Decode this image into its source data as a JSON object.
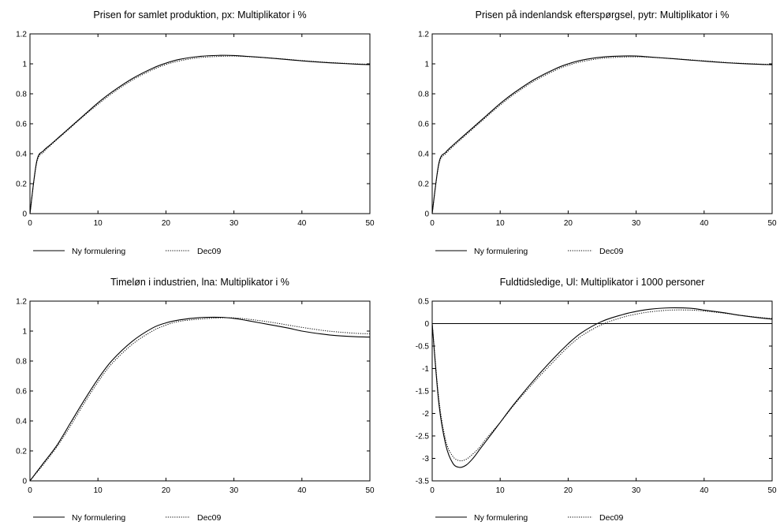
{
  "chart_data": [
    {
      "type": "line",
      "title": "Prisen for samlet produktion, px: Multiplikator i %",
      "xlim": [
        0,
        50
      ],
      "ylim": [
        0,
        1.2
      ],
      "xticks": [
        "0",
        "10",
        "20",
        "30",
        "40",
        "50"
      ],
      "yticks": [
        "0",
        "0.2",
        "0.4",
        "0.6",
        "0.8",
        "1",
        "1.2"
      ],
      "x": [
        0,
        1,
        2,
        3,
        4,
        5,
        6,
        8,
        10,
        12,
        15,
        18,
        20,
        22,
        25,
        28,
        30,
        32,
        35,
        38,
        40,
        43,
        45,
        48,
        50
      ],
      "series": [
        {
          "name": "Ny formulering",
          "style": "solid",
          "values": [
            0,
            0.35,
            0.42,
            0.46,
            0.5,
            0.54,
            0.58,
            0.66,
            0.74,
            0.81,
            0.9,
            0.97,
            1.005,
            1.03,
            1.05,
            1.057,
            1.056,
            1.05,
            1.04,
            1.028,
            1.02,
            1.01,
            1.005,
            0.998,
            0.995
          ]
        },
        {
          "name": "Dec09",
          "style": "dotted",
          "values": [
            0,
            0.34,
            0.41,
            0.455,
            0.495,
            0.535,
            0.575,
            0.655,
            0.73,
            0.8,
            0.89,
            0.96,
            0.995,
            1.02,
            1.042,
            1.05,
            1.052,
            1.048,
            1.04,
            1.03,
            1.022,
            1.012,
            1.007,
            1.0,
            0.997
          ]
        }
      ],
      "zero_line": false,
      "legend": [
        "Ny formulering",
        "Dec09"
      ],
      "legend_position": "bottom-left"
    },
    {
      "type": "line",
      "title": "Prisen på indenlandsk efterspørgsel, pytr: Multiplikator i %",
      "xlim": [
        0,
        50
      ],
      "ylim": [
        0,
        1.2
      ],
      "xticks": [
        "0",
        "10",
        "20",
        "30",
        "40",
        "50"
      ],
      "yticks": [
        "0",
        "0.2",
        "0.4",
        "0.6",
        "0.8",
        "1",
        "1.2"
      ],
      "x": [
        0,
        1,
        2,
        3,
        4,
        5,
        6,
        8,
        10,
        12,
        15,
        18,
        20,
        22,
        25,
        28,
        30,
        32,
        35,
        38,
        40,
        43,
        45,
        48,
        50
      ],
      "series": [
        {
          "name": "Ny formulering",
          "style": "solid",
          "values": [
            0,
            0.34,
            0.41,
            0.455,
            0.495,
            0.535,
            0.575,
            0.655,
            0.735,
            0.805,
            0.895,
            0.965,
            1.0,
            1.025,
            1.045,
            1.052,
            1.052,
            1.046,
            1.036,
            1.025,
            1.018,
            1.008,
            1.003,
            0.997,
            0.994
          ]
        },
        {
          "name": "Dec09",
          "style": "dotted",
          "values": [
            0,
            0.33,
            0.4,
            0.445,
            0.487,
            0.527,
            0.567,
            0.647,
            0.725,
            0.795,
            0.885,
            0.955,
            0.99,
            1.015,
            1.037,
            1.045,
            1.047,
            1.044,
            1.036,
            1.027,
            1.02,
            1.01,
            1.005,
            0.999,
            0.996
          ]
        }
      ],
      "zero_line": false,
      "legend": [
        "Ny formulering",
        "Dec09"
      ],
      "legend_position": "bottom-left"
    },
    {
      "type": "line",
      "title": "Timeløn i industrien, lna: Multiplikator i %",
      "xlim": [
        0,
        50
      ],
      "ylim": [
        0,
        1.2
      ],
      "xticks": [
        "0",
        "10",
        "20",
        "30",
        "40",
        "50"
      ],
      "yticks": [
        "0",
        "0.2",
        "0.4",
        "0.6",
        "0.8",
        "1",
        "1.2"
      ],
      "x": [
        0,
        1,
        2,
        4,
        6,
        8,
        10,
        12,
        15,
        18,
        20,
        22,
        25,
        28,
        30,
        32,
        35,
        38,
        40,
        43,
        45,
        48,
        50
      ],
      "series": [
        {
          "name": "Ny formulering",
          "style": "solid",
          "values": [
            0,
            0.06,
            0.12,
            0.24,
            0.39,
            0.54,
            0.68,
            0.8,
            0.93,
            1.02,
            1.055,
            1.075,
            1.09,
            1.092,
            1.085,
            1.07,
            1.045,
            1.02,
            1.0,
            0.98,
            0.97,
            0.962,
            0.96
          ]
        },
        {
          "name": "Dec09",
          "style": "dotted",
          "values": [
            0,
            0.055,
            0.11,
            0.23,
            0.37,
            0.52,
            0.66,
            0.78,
            0.91,
            1.0,
            1.04,
            1.065,
            1.08,
            1.088,
            1.088,
            1.08,
            1.062,
            1.04,
            1.025,
            1.005,
            0.995,
            0.985,
            0.982
          ]
        }
      ],
      "zero_line": false,
      "legend": [
        "Ny formulering",
        "Dec09"
      ],
      "legend_position": "bottom-left"
    },
    {
      "type": "line",
      "title": "Fuldtidsledige, Ul: Multiplikator i 1000 personer",
      "xlim": [
        0,
        50
      ],
      "ylim": [
        -3.5,
        0.5
      ],
      "xticks": [
        "0",
        "10",
        "20",
        "30",
        "40",
        "50"
      ],
      "yticks": [
        "-3.5",
        "-3",
        "-2.5",
        "-2",
        "-1.5",
        "-1",
        "-0.5",
        "0",
        "0.5"
      ],
      "x": [
        0,
        1,
        2,
        3,
        4,
        5,
        6,
        7,
        8,
        10,
        12,
        15,
        18,
        20,
        22,
        25,
        28,
        30,
        32,
        35,
        38,
        40,
        43,
        45,
        48,
        50
      ],
      "series": [
        {
          "name": "Ny formulering",
          "style": "solid",
          "values": [
            0,
            -1.8,
            -2.7,
            -3.1,
            -3.2,
            -3.15,
            -3.0,
            -2.8,
            -2.6,
            -2.2,
            -1.8,
            -1.25,
            -0.75,
            -0.45,
            -0.2,
            0.05,
            0.2,
            0.27,
            0.32,
            0.35,
            0.34,
            0.3,
            0.24,
            0.19,
            0.13,
            0.1
          ]
        },
        {
          "name": "Dec09",
          "style": "dotted",
          "values": [
            0,
            -1.7,
            -2.6,
            -2.95,
            -3.05,
            -3.02,
            -2.9,
            -2.75,
            -2.55,
            -2.2,
            -1.82,
            -1.3,
            -0.82,
            -0.52,
            -0.27,
            -0.02,
            0.14,
            0.21,
            0.26,
            0.3,
            0.3,
            0.28,
            0.23,
            0.19,
            0.14,
            0.11
          ]
        }
      ],
      "zero_line": true,
      "legend": [
        "Ny formulering",
        "Dec09"
      ],
      "legend_position": "bottom-left"
    }
  ]
}
